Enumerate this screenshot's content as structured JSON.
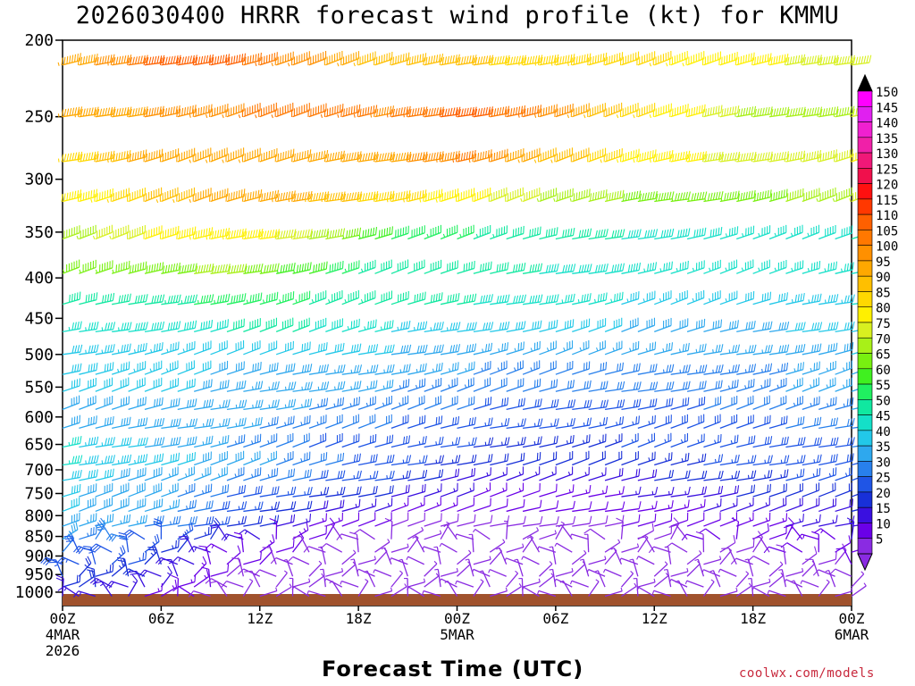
{
  "chart_data": {
    "type": "wind-barb time-height profile",
    "title": "2026030400 HRRR forecast wind profile (kt) for KMMU",
    "xlabel": "Forecast Time (UTC)",
    "ylabel": "",
    "credit": "coolwx.com/models",
    "ylim": [
      1040,
      200
    ],
    "xlim_hours": [
      0,
      48
    ],
    "y_ticks": [
      {
        "value": 200,
        "label": "200"
      },
      {
        "value": 250,
        "label": "250"
      },
      {
        "value": 300,
        "label": "300"
      },
      {
        "value": 350,
        "label": "350"
      },
      {
        "value": 400,
        "label": "400"
      },
      {
        "value": 450,
        "label": "450"
      },
      {
        "value": 500,
        "label": "500"
      },
      {
        "value": 550,
        "label": "550"
      },
      {
        "value": 600,
        "label": "600"
      },
      {
        "value": 650,
        "label": "650"
      },
      {
        "value": 700,
        "label": "700"
      },
      {
        "value": 750,
        "label": "750"
      },
      {
        "value": 800,
        "label": "800"
      },
      {
        "value": 850,
        "label": "850"
      },
      {
        "value": 900,
        "label": "900"
      },
      {
        "value": 950,
        "label": "950"
      },
      {
        "value": 1000,
        "label": "1000"
      }
    ],
    "x_ticks": [
      {
        "hour": 0,
        "lines": [
          "00Z",
          "4MAR",
          "2026"
        ]
      },
      {
        "hour": 6,
        "lines": [
          "06Z"
        ]
      },
      {
        "hour": 12,
        "lines": [
          "12Z"
        ]
      },
      {
        "hour": 18,
        "lines": [
          "18Z"
        ]
      },
      {
        "hour": 24,
        "lines": [
          "00Z",
          "5MAR"
        ]
      },
      {
        "hour": 30,
        "lines": [
          "06Z"
        ]
      },
      {
        "hour": 36,
        "lines": [
          "12Z"
        ]
      },
      {
        "hour": 42,
        "lines": [
          "18Z"
        ]
      },
      {
        "hour": 48,
        "lines": [
          "00Z",
          "6MAR"
        ]
      }
    ],
    "pressure_levels": [
      215,
      250,
      285,
      320,
      357,
      395,
      432,
      468,
      500,
      530,
      557,
      587,
      620,
      655,
      690,
      722,
      757,
      790,
      825,
      857,
      890,
      922,
      955,
      985,
      1012
    ],
    "level_profiles": [
      {
        "p": 215,
        "speeds": [
          95,
          110,
          112,
          102,
          90,
          92,
          85,
          90,
          82,
          80,
          78
        ]
      },
      {
        "p": 250,
        "speeds": [
          96,
          100,
          104,
          108,
          104,
          112,
          105,
          88,
          80,
          70,
          75
        ]
      },
      {
        "p": 285,
        "speeds": [
          85,
          100,
          95,
          100,
          98,
          105,
          95,
          85,
          80,
          75,
          80
        ]
      },
      {
        "p": 320,
        "speeds": [
          80,
          90,
          100,
          95,
          88,
          82,
          75,
          70,
          65,
          70,
          75
        ]
      },
      {
        "p": 357,
        "speeds": [
          72,
          80,
          85,
          75,
          60,
          55,
          50,
          50,
          48,
          45,
          50
        ]
      },
      {
        "p": 395,
        "speeds": [
          65,
          68,
          72,
          62,
          52,
          50,
          50,
          48,
          45,
          45,
          48
        ]
      },
      {
        "p": 432,
        "speeds": [
          50,
          52,
          58,
          55,
          52,
          50,
          48,
          45,
          43,
          42,
          45
        ]
      },
      {
        "p": 468,
        "speeds": [
          45,
          48,
          50,
          50,
          45,
          42,
          40,
          40,
          38,
          40,
          42
        ]
      },
      {
        "p": 500,
        "speeds": [
          42,
          45,
          40,
          40,
          40,
          38,
          35,
          35,
          35,
          38,
          40
        ]
      },
      {
        "p": 530,
        "speeds": [
          40,
          45,
          38,
          38,
          36,
          35,
          32,
          32,
          33,
          35,
          38
        ]
      },
      {
        "p": 557,
        "speeds": [
          40,
          42,
          38,
          35,
          35,
          33,
          30,
          30,
          32,
          35,
          38
        ]
      },
      {
        "p": 587,
        "speeds": [
          38,
          40,
          37,
          35,
          33,
          30,
          28,
          28,
          30,
          32,
          35
        ]
      },
      {
        "p": 620,
        "speeds": [
          38,
          38,
          36,
          33,
          30,
          28,
          25,
          27,
          28,
          30,
          33
        ]
      },
      {
        "p": 655,
        "speeds": [
          45,
          40,
          35,
          30,
          28,
          25,
          22,
          25,
          27,
          28,
          30
        ]
      },
      {
        "p": 690,
        "speeds": [
          45,
          42,
          38,
          32,
          28,
          22,
          20,
          22,
          25,
          27,
          28
        ]
      },
      {
        "p": 722,
        "speeds": [
          42,
          38,
          35,
          30,
          25,
          18,
          15,
          18,
          22,
          25,
          25
        ]
      },
      {
        "p": 757,
        "speeds": [
          40,
          38,
          30,
          25,
          20,
          15,
          12,
          15,
          18,
          22,
          22
        ]
      },
      {
        "p": 790,
        "speeds": [
          40,
          38,
          28,
          20,
          15,
          12,
          10,
          12,
          15,
          18,
          20
        ]
      },
      {
        "p": 825,
        "speeds": [
          38,
          35,
          25,
          15,
          10,
          8,
          8,
          10,
          12,
          15,
          18
        ]
      },
      {
        "p": 857,
        "speeds": [
          35,
          30,
          20,
          12,
          8,
          6,
          6,
          8,
          10,
          12,
          15
        ]
      },
      {
        "p": 890,
        "speeds": [
          30,
          28,
          15,
          10,
          7,
          5,
          5,
          7,
          8,
          10,
          12
        ]
      },
      {
        "p": 922,
        "speeds": [
          28,
          25,
          12,
          8,
          6,
          5,
          5,
          6,
          7,
          8,
          10
        ]
      },
      {
        "p": 955,
        "speeds": [
          25,
          22,
          10,
          7,
          5,
          5,
          5,
          5,
          6,
          7,
          8
        ]
      },
      {
        "p": 985,
        "speeds": [
          22,
          18,
          10,
          6,
          5,
          5,
          5,
          5,
          5,
          6,
          7
        ]
      },
      {
        "p": 1012,
        "speeds": [
          18,
          15,
          8,
          5,
          5,
          5,
          5,
          5,
          5,
          5,
          6
        ]
      }
    ],
    "colorbar": {
      "levels": [
        5,
        10,
        15,
        20,
        25,
        30,
        35,
        40,
        45,
        50,
        55,
        60,
        65,
        70,
        75,
        80,
        85,
        90,
        95,
        100,
        105,
        110,
        115,
        120,
        125,
        130,
        135,
        140,
        145,
        150
      ],
      "colors": [
        "#8a2be2",
        "#6a00e8",
        "#3a10e0",
        "#1830d8",
        "#1f55e6",
        "#2880ec",
        "#2ea8ee",
        "#22c8e8",
        "#14e0c8",
        "#10e8a0",
        "#20f060",
        "#40f020",
        "#78f010",
        "#a8f018",
        "#d8f020",
        "#fff000",
        "#ffd800",
        "#ffbf00",
        "#ffa800",
        "#ff9000",
        "#ff7800",
        "#ff6000",
        "#ff3800",
        "#ff1010",
        "#f0104c",
        "#f01878",
        "#f020a8",
        "#f020d0",
        "#e020f0",
        "#ff00ff"
      ]
    },
    "ground_color": "#a0522d"
  }
}
